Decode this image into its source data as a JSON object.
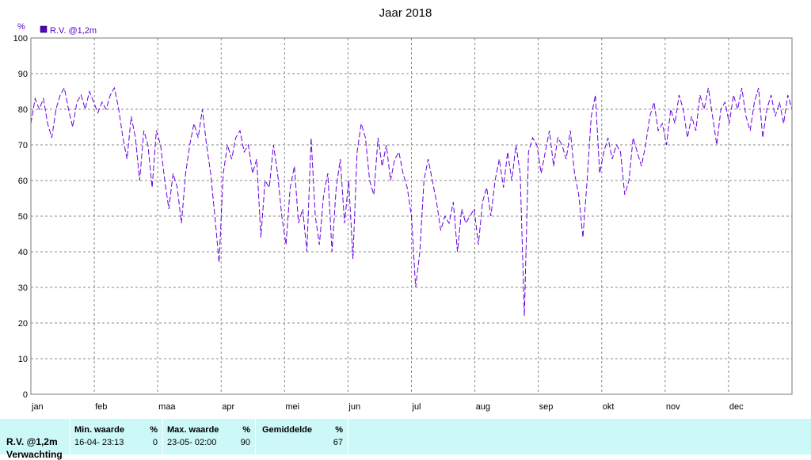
{
  "chart_data": {
    "type": "line",
    "title": "Jaar 2018",
    "y_unit": "%",
    "ylim": [
      0,
      100
    ],
    "yticks": [
      0,
      10,
      20,
      30,
      40,
      50,
      60,
      70,
      80,
      90,
      100
    ],
    "xticks": [
      "jan",
      "feb",
      "maa",
      "apr",
      "mei",
      "jun",
      "jul",
      "aug",
      "sep",
      "okt",
      "nov",
      "dec"
    ],
    "grid": true,
    "legend": "top-left",
    "series": [
      {
        "name": "R.V. @1,2m",
        "color": "#6600dd",
        "x_unit": "day-of-year",
        "points": [
          [
            1,
            76
          ],
          [
            3,
            83
          ],
          [
            5,
            80
          ],
          [
            7,
            83
          ],
          [
            9,
            76
          ],
          [
            11,
            72
          ],
          [
            13,
            80
          ],
          [
            15,
            84
          ],
          [
            17,
            86
          ],
          [
            19,
            80
          ],
          [
            21,
            75
          ],
          [
            23,
            82
          ],
          [
            25,
            84
          ],
          [
            27,
            80
          ],
          [
            29,
            85
          ],
          [
            31,
            82
          ],
          [
            33,
            79
          ],
          [
            35,
            82
          ],
          [
            37,
            80
          ],
          [
            39,
            84
          ],
          [
            41,
            86
          ],
          [
            43,
            80
          ],
          [
            45,
            72
          ],
          [
            47,
            66
          ],
          [
            49,
            78
          ],
          [
            51,
            72
          ],
          [
            53,
            60
          ],
          [
            55,
            74
          ],
          [
            57,
            70
          ],
          [
            59,
            58
          ],
          [
            61,
            74
          ],
          [
            63,
            70
          ],
          [
            65,
            60
          ],
          [
            67,
            52
          ],
          [
            69,
            62
          ],
          [
            71,
            58
          ],
          [
            73,
            48
          ],
          [
            75,
            62
          ],
          [
            77,
            70
          ],
          [
            79,
            76
          ],
          [
            81,
            72
          ],
          [
            83,
            80
          ],
          [
            85,
            70
          ],
          [
            87,
            62
          ],
          [
            89,
            50
          ],
          [
            91,
            37
          ],
          [
            93,
            62
          ],
          [
            95,
            70
          ],
          [
            97,
            66
          ],
          [
            99,
            72
          ],
          [
            101,
            74
          ],
          [
            103,
            68
          ],
          [
            105,
            70
          ],
          [
            107,
            62
          ],
          [
            109,
            66
          ],
          [
            111,
            44
          ],
          [
            113,
            60
          ],
          [
            115,
            58
          ],
          [
            117,
            70
          ],
          [
            119,
            62
          ],
          [
            121,
            50
          ],
          [
            123,
            42
          ],
          [
            125,
            58
          ],
          [
            127,
            64
          ],
          [
            129,
            48
          ],
          [
            131,
            52
          ],
          [
            133,
            40
          ],
          [
            135,
            72
          ],
          [
            137,
            50
          ],
          [
            139,
            42
          ],
          [
            141,
            56
          ],
          [
            143,
            62
          ],
          [
            145,
            40
          ],
          [
            147,
            58
          ],
          [
            149,
            66
          ],
          [
            151,
            48
          ],
          [
            153,
            60
          ],
          [
            155,
            38
          ],
          [
            157,
            68
          ],
          [
            159,
            76
          ],
          [
            161,
            72
          ],
          [
            163,
            60
          ],
          [
            165,
            56
          ],
          [
            167,
            72
          ],
          [
            169,
            64
          ],
          [
            171,
            70
          ],
          [
            173,
            60
          ],
          [
            175,
            66
          ],
          [
            177,
            68
          ],
          [
            179,
            62
          ],
          [
            181,
            58
          ],
          [
            183,
            50
          ],
          [
            185,
            30
          ],
          [
            187,
            40
          ],
          [
            189,
            60
          ],
          [
            191,
            66
          ],
          [
            193,
            60
          ],
          [
            195,
            54
          ],
          [
            197,
            46
          ],
          [
            199,
            50
          ],
          [
            201,
            48
          ],
          [
            203,
            54
          ],
          [
            205,
            40
          ],
          [
            207,
            52
          ],
          [
            209,
            48
          ],
          [
            211,
            50
          ],
          [
            213,
            52
          ],
          [
            215,
            42
          ],
          [
            217,
            54
          ],
          [
            219,
            58
          ],
          [
            221,
            50
          ],
          [
            223,
            60
          ],
          [
            225,
            66
          ],
          [
            227,
            58
          ],
          [
            229,
            68
          ],
          [
            231,
            60
          ],
          [
            233,
            70
          ],
          [
            235,
            62
          ],
          [
            237,
            22
          ],
          [
            239,
            68
          ],
          [
            241,
            72
          ],
          [
            243,
            70
          ],
          [
            245,
            62
          ],
          [
            247,
            68
          ],
          [
            249,
            74
          ],
          [
            251,
            64
          ],
          [
            253,
            72
          ],
          [
            255,
            70
          ],
          [
            257,
            66
          ],
          [
            259,
            74
          ],
          [
            261,
            62
          ],
          [
            263,
            56
          ],
          [
            265,
            44
          ],
          [
            267,
            60
          ],
          [
            269,
            78
          ],
          [
            271,
            84
          ],
          [
            273,
            62
          ],
          [
            275,
            68
          ],
          [
            277,
            72
          ],
          [
            279,
            66
          ],
          [
            281,
            70
          ],
          [
            283,
            68
          ],
          [
            285,
            56
          ],
          [
            287,
            60
          ],
          [
            289,
            72
          ],
          [
            291,
            68
          ],
          [
            293,
            64
          ],
          [
            295,
            70
          ],
          [
            297,
            78
          ],
          [
            299,
            82
          ],
          [
            301,
            74
          ],
          [
            303,
            76
          ],
          [
            305,
            70
          ],
          [
            307,
            80
          ],
          [
            309,
            76
          ],
          [
            311,
            84
          ],
          [
            313,
            80
          ],
          [
            315,
            72
          ],
          [
            317,
            78
          ],
          [
            319,
            74
          ],
          [
            321,
            84
          ],
          [
            323,
            80
          ],
          [
            325,
            86
          ],
          [
            327,
            78
          ],
          [
            329,
            70
          ],
          [
            331,
            80
          ],
          [
            333,
            82
          ],
          [
            335,
            76
          ],
          [
            337,
            84
          ],
          [
            339,
            80
          ],
          [
            341,
            86
          ],
          [
            343,
            78
          ],
          [
            345,
            74
          ],
          [
            347,
            82
          ],
          [
            349,
            86
          ],
          [
            351,
            72
          ],
          [
            353,
            80
          ],
          [
            355,
            84
          ],
          [
            357,
            78
          ],
          [
            359,
            82
          ],
          [
            361,
            76
          ],
          [
            363,
            84
          ],
          [
            365,
            80
          ]
        ]
      }
    ]
  },
  "footer": {
    "series_label": "R.V. @1,2m",
    "series_label_cut": "Verwachting",
    "min": {
      "label": "Min. waarde",
      "unit": "%",
      "date": "16-04-  23:13",
      "value": "0"
    },
    "max": {
      "label": "Max. waarde",
      "unit": "%",
      "date": "23-05-  02:00",
      "value": "90"
    },
    "avg": {
      "label": "Gemiddelde",
      "unit": "%",
      "value": "67"
    }
  }
}
